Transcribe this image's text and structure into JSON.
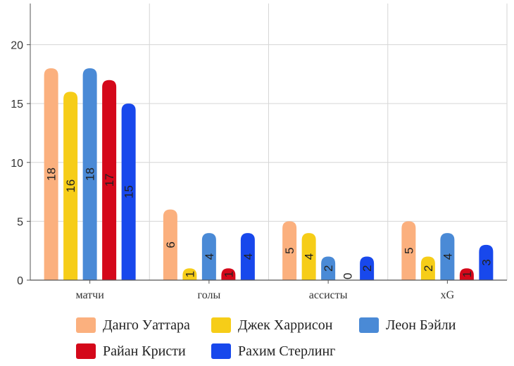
{
  "chart_data": {
    "type": "bar",
    "categories": [
      "матчи",
      "голы",
      "ассисты",
      "xG"
    ],
    "series": [
      {
        "name": "Данго Уаттара",
        "color": "#fbb07e",
        "values": [
          18,
          6,
          5,
          5
        ]
      },
      {
        "name": "Джек Харрисон",
        "color": "#f6cd18",
        "values": [
          16,
          1,
          4,
          2
        ]
      },
      {
        "name": "Леон Бэйли",
        "color": "#4a8ad6",
        "values": [
          18,
          4,
          2,
          4
        ]
      },
      {
        "name": "Райан Кристи",
        "color": "#d4081a",
        "values": [
          17,
          1,
          0,
          1
        ]
      },
      {
        "name": "Рахим Стерлинг",
        "color": "#1848ec",
        "values": [
          15,
          4,
          2,
          3
        ]
      }
    ],
    "y_ticks": [
      0,
      5,
      10,
      15,
      20
    ],
    "ylim": [
      0,
      23.5
    ],
    "title": "",
    "xlabel": "",
    "ylabel": "",
    "grid": true,
    "legend_position": "bottom"
  }
}
